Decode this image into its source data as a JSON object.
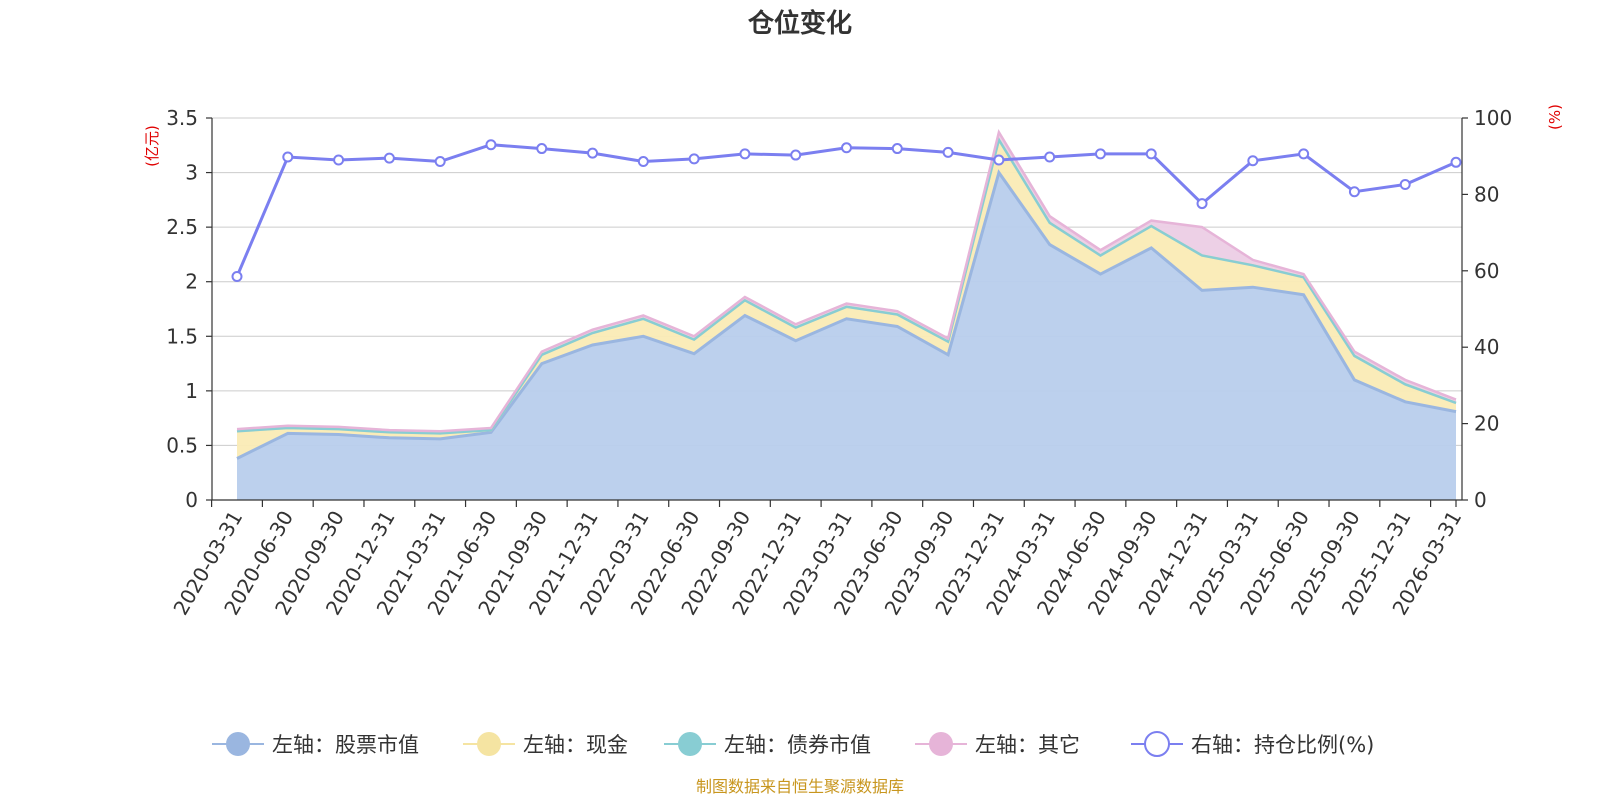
{
  "chart_data": {
    "type": "area",
    "title": "仓位变化",
    "left_unit": "(亿元)",
    "right_unit": "(%)",
    "left_ylim": [
      0,
      3.5
    ],
    "left_ticks": [
      "0",
      "0.5",
      "1",
      "1.5",
      "2",
      "2.5",
      "3",
      "3.5"
    ],
    "right_ylim": [
      0,
      100
    ],
    "right_ticks": [
      "0",
      "20",
      "40",
      "60",
      "80",
      "100"
    ],
    "grid": true,
    "legend_position": "bottom",
    "categories": [
      "2020-03-31",
      "2020-06-30",
      "2020-09-30",
      "2020-12-31",
      "2021-03-31",
      "2021-06-30",
      "2021-09-30",
      "2021-12-31",
      "2022-03-31",
      "2022-06-30",
      "2022-09-30",
      "2022-12-31",
      "2023-03-31",
      "2023-06-30",
      "2023-09-30",
      "2023-12-31",
      "2024-03-31",
      "2024-06-30",
      "2024-09-30",
      "2024-12-31",
      "2025-03-31",
      "2025-06-30",
      "2025-09-30",
      "2025-12-31",
      "2026-03-31"
    ],
    "series": [
      {
        "name": "左轴：股票市值",
        "axis": "left",
        "kind": "stack-area",
        "color": "#9ab6e0",
        "fill": "#b8ceec",
        "values": [
          0.38,
          0.61,
          0.6,
          0.57,
          0.56,
          0.62,
          1.25,
          1.42,
          1.5,
          1.34,
          1.69,
          1.46,
          1.66,
          1.59,
          1.33,
          3.0,
          2.34,
          2.07,
          2.31,
          1.92,
          1.95,
          1.88,
          1.1,
          0.9,
          0.81
        ]
      },
      {
        "name": "左轴：现金",
        "axis": "left",
        "kind": "stack-area",
        "color": "#f5e4a2",
        "fill": "#faebb5",
        "values": [
          0.25,
          0.05,
          0.05,
          0.05,
          0.05,
          0.02,
          0.08,
          0.11,
          0.16,
          0.13,
          0.14,
          0.12,
          0.11,
          0.11,
          0.12,
          0.3,
          0.2,
          0.17,
          0.2,
          0.32,
          0.2,
          0.16,
          0.22,
          0.16,
          0.08
        ]
      },
      {
        "name": "左轴：债券市值",
        "axis": "left",
        "kind": "stack-area",
        "color": "#88cdd3",
        "fill": "#a8dce0",
        "values": [
          0,
          0,
          0,
          0,
          0,
          0,
          0,
          0,
          0,
          0,
          0,
          0,
          0,
          0,
          0,
          0,
          0,
          0,
          0,
          0,
          0,
          0,
          0,
          0,
          0
        ]
      },
      {
        "name": "左轴：其它",
        "axis": "left",
        "kind": "stack-area",
        "color": "#e6b4d8",
        "fill": "#eccde5",
        "values": [
          0.02,
          0.02,
          0.02,
          0.02,
          0.02,
          0.02,
          0.03,
          0.03,
          0.03,
          0.03,
          0.03,
          0.03,
          0.03,
          0.03,
          0.03,
          0.07,
          0.06,
          0.05,
          0.05,
          0.26,
          0.05,
          0.03,
          0.04,
          0.04,
          0.03
        ]
      },
      {
        "name": "右轴：持仓比例(%)",
        "axis": "right",
        "kind": "line",
        "color": "#7b7ff0",
        "values": [
          58.5,
          89.8,
          89.0,
          89.5,
          88.6,
          93.0,
          92.0,
          90.8,
          88.6,
          89.3,
          90.6,
          90.3,
          92.2,
          92.0,
          91.0,
          89.0,
          89.8,
          90.6,
          90.6,
          77.6,
          88.8,
          90.6,
          80.7,
          82.6,
          88.4
        ]
      }
    ]
  },
  "source_text": "制图数据来自恒生聚源数据库"
}
